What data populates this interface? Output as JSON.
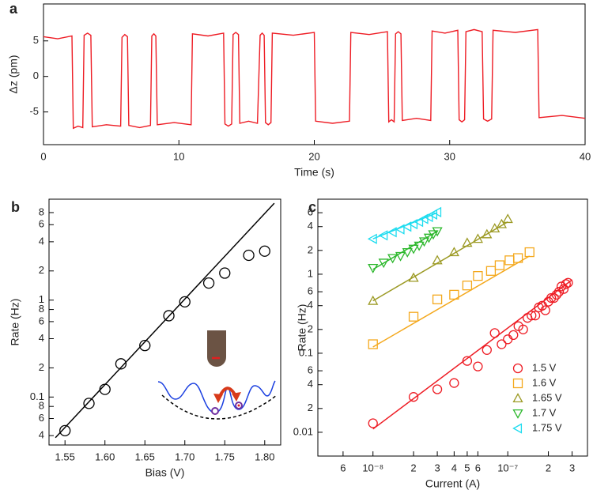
{
  "chart_data": [
    {
      "type": "line",
      "label": "a",
      "xlabel": "Time (s)",
      "ylabel": "Δz (pm)",
      "color": "#ee1c24",
      "xscale": "linear",
      "yscale": "linear",
      "xlim": [
        0,
        40
      ],
      "ylim": [
        -9.6,
        10.2
      ],
      "xticks": [
        0,
        10,
        20,
        30,
        40
      ],
      "yticks": [
        5,
        0,
        -5
      ],
      "x": [
        0,
        1.05,
        2.1,
        2.2,
        2.55,
        2.9,
        3.0,
        3.25,
        3.5,
        3.6,
        4.65,
        5.7,
        5.8,
        6.0,
        6.2,
        6.3,
        7.1,
        7.9,
        8.0,
        8.15,
        8.3,
        8.4,
        9.65,
        10.9,
        11.0,
        12.15,
        13.3,
        13.4,
        13.65,
        13.9,
        14.0,
        14.2,
        14.4,
        14.5,
        15.15,
        15.8,
        16.0,
        16.15,
        16.3,
        16.4,
        16.6,
        16.8,
        16.9,
        18.45,
        20.0,
        20.1,
        21.35,
        22.6,
        22.7,
        24.05,
        25.4,
        25.5,
        25.7,
        25.9,
        26.0,
        26.2,
        26.4,
        26.5,
        27.55,
        28.6,
        28.7,
        29.65,
        30.6,
        30.7,
        30.9,
        31.1,
        31.2,
        31.8,
        32.4,
        32.5,
        32.8,
        33.1,
        33.2,
        34.85,
        36.5,
        36.6,
        38.3,
        40
      ],
      "values": [
        5.6,
        5.3,
        5.7,
        -7.3,
        -7.0,
        -7.2,
        5.8,
        6.1,
        5.8,
        -7.1,
        -6.8,
        -7.0,
        5.5,
        5.9,
        5.6,
        -6.9,
        -7.2,
        -6.9,
        5.7,
        6.0,
        5.7,
        -6.8,
        -6.5,
        -6.8,
        6.0,
        5.7,
        6.1,
        -6.7,
        -7.0,
        -6.7,
        5.9,
        6.2,
        5.9,
        -6.6,
        -6.3,
        -6.6,
        5.8,
        6.1,
        5.8,
        -6.5,
        -6.8,
        -6.5,
        6.1,
        5.8,
        6.2,
        -6.3,
        -6.6,
        -6.3,
        6.2,
        5.9,
        6.3,
        -6.4,
        -6.1,
        -6.4,
        6.0,
        6.3,
        6.0,
        -6.2,
        -5.9,
        -6.2,
        6.4,
        6.1,
        6.5,
        -6.1,
        -6.4,
        -6.1,
        6.3,
        6.6,
        6.3,
        -6.0,
        -6.3,
        -6.0,
        6.5,
        6.2,
        6.6,
        -5.8,
        -5.5,
        -5.9
      ]
    },
    {
      "type": "scatter",
      "label": "b",
      "xlabel": "Bias (V)",
      "ylabel": "Rate (Hz)",
      "xscale": "linear",
      "yscale": "log",
      "xlim": [
        1.53,
        1.82
      ],
      "ylim": [
        0.032,
        11
      ],
      "xticks": [
        1.55,
        {
          "value": 1.6,
          "label": "1.60"
        },
        1.65,
        {
          "value": 1.7,
          "label": "1.70"
        },
        1.75,
        {
          "value": 1.8,
          "label": "1.80"
        }
      ],
      "yticks": [
        {
          "value": 0.04,
          "label": "4"
        },
        {
          "value": 0.06,
          "label": "6"
        },
        {
          "value": 0.08,
          "label": "8"
        },
        0.1,
        {
          "value": 0.2,
          "label": "2"
        },
        {
          "value": 0.4,
          "label": "4"
        },
        {
          "value": 0.6,
          "label": "6"
        },
        {
          "value": 0.8,
          "label": "8"
        },
        1,
        2,
        4,
        6,
        8
      ],
      "series": [
        {
          "color": "#000000",
          "marker": "circle",
          "x": [
            1.55,
            1.58,
            1.6,
            1.62,
            1.65,
            1.68,
            1.7,
            1.73,
            1.75,
            1.78,
            1.8
          ],
          "values": [
            0.045,
            0.086,
            0.12,
            0.22,
            0.34,
            0.69,
            0.96,
            1.5,
            1.9,
            2.9,
            3.2
          ],
          "fit": {
            "x": [
              1.538,
              1.812
            ],
            "values": [
              0.038,
              10
            ]
          }
        }
      ]
    },
    {
      "type": "scatter",
      "label": "c",
      "xlabel": "Current (A)",
      "ylabel": "Rate (Hz)",
      "legend": "lower right",
      "xscale": "log",
      "yscale": "log",
      "xlim": [
        3.9e-09,
        3.9e-07
      ],
      "ylim": [
        0.005,
        8.9
      ],
      "xticks": [
        {
          "value": 6e-09,
          "label": "6"
        },
        {
          "value": 1e-08,
          "label": "10⁻⁸"
        },
        {
          "value": 2e-08,
          "label": "2"
        },
        {
          "value": 3e-08,
          "label": "3"
        },
        {
          "value": 4e-08,
          "label": "4"
        },
        {
          "value": 5e-08,
          "label": "5"
        },
        {
          "value": 6e-08,
          "label": "6"
        },
        {
          "value": 1e-07,
          "label": "10⁻⁷"
        },
        {
          "value": 2e-07,
          "label": "2"
        },
        {
          "value": 3e-07,
          "label": "3"
        }
      ],
      "yticks": [
        0.01,
        {
          "value": 0.02,
          "label": "2"
        },
        {
          "value": 0.04,
          "label": "4"
        },
        {
          "value": 0.06,
          "label": "6"
        },
        0.1,
        {
          "value": 0.2,
          "label": "2"
        },
        {
          "value": 0.4,
          "label": "4"
        },
        {
          "value": 0.6,
          "label": "6"
        },
        1,
        2,
        4,
        6
      ],
      "series": [
        {
          "name": "1.5 V",
          "color": "#ee1c24",
          "marker": "circle",
          "x": [
            1e-08,
            2e-08,
            3e-08,
            4e-08,
            5e-08,
            6e-08,
            7e-08,
            8e-08,
            9e-08,
            1e-07,
            1.1e-07,
            1.2e-07,
            1.3e-07,
            1.4e-07,
            1.5e-07,
            1.6e-07,
            1.7e-07,
            1.8e-07,
            1.9e-07,
            2e-07,
            2.1e-07,
            2.2e-07,
            2.3e-07,
            2.4e-07,
            2.5e-07,
            2.6e-07,
            2.7e-07,
            2.8e-07
          ],
          "values": [
            0.013,
            0.028,
            0.035,
            0.042,
            0.08,
            0.068,
            0.11,
            0.18,
            0.13,
            0.15,
            0.17,
            0.22,
            0.2,
            0.28,
            0.3,
            0.3,
            0.38,
            0.4,
            0.35,
            0.45,
            0.5,
            0.5,
            0.55,
            0.6,
            0.7,
            0.65,
            0.75,
            0.78
          ],
          "fit": {
            "x": [
              1e-08,
              3e-07
            ],
            "values": [
              0.011,
              0.85
            ]
          }
        },
        {
          "name": "1.6 V",
          "color": "#f4a81c",
          "marker": "square",
          "x": [
            1e-08,
            2e-08,
            3e-08,
            4e-08,
            5e-08,
            6e-08,
            7.5e-08,
            8.7e-08,
            1.03e-07,
            1.19e-07,
            1.45e-07
          ],
          "values": [
            0.13,
            0.29,
            0.48,
            0.55,
            0.72,
            0.95,
            1.1,
            1.3,
            1.5,
            1.6,
            1.9
          ],
          "fit": {
            "x": [
              1e-08,
              1.45e-07
            ],
            "values": [
              0.12,
              1.7
            ]
          }
        },
        {
          "name": "1.65 V",
          "color": "#9c9a24",
          "marker": "triangle-up",
          "x": [
            1e-08,
            2e-08,
            3e-08,
            4e-08,
            5e-08,
            6e-08,
            7e-08,
            8e-08,
            9e-08,
            1e-07
          ],
          "values": [
            0.46,
            0.9,
            1.5,
            1.9,
            2.5,
            2.8,
            3.2,
            3.8,
            4.3,
            5.0
          ],
          "fit": {
            "x": [
              1e-08,
              1e-07
            ],
            "values": [
              0.46,
              4.6
            ]
          }
        },
        {
          "name": "1.7 V",
          "color": "#2db82d",
          "marker": "triangle-down",
          "x": [
            1e-08,
            1.2e-08,
            1.4e-08,
            1.6e-08,
            1.8e-08,
            2e-08,
            2.2e-08,
            2.4e-08,
            2.6e-08,
            2.8e-08,
            3e-08
          ],
          "values": [
            1.2,
            1.4,
            1.6,
            1.7,
            1.9,
            2.1,
            2.3,
            2.6,
            2.9,
            3.2,
            3.5
          ],
          "fit": {
            "x": [
              1e-08,
              3e-08
            ],
            "values": [
              1.15,
              3.5
            ]
          }
        },
        {
          "name": "1.75 V",
          "color": "#1edcef",
          "marker": "triangle-left",
          "x": [
            1e-08,
            1.2e-08,
            1.4e-08,
            1.6e-08,
            1.8e-08,
            2e-08,
            2.2e-08,
            2.4e-08,
            2.6e-08,
            2.8e-08,
            3e-08
          ],
          "values": [
            2.8,
            3.1,
            3.4,
            3.7,
            4.0,
            4.3,
            4.6,
            5.0,
            5.3,
            5.7,
            6.1
          ],
          "fit": {
            "x": [
              1e-08,
              3e-08
            ],
            "values": [
              2.8,
              6.0
            ]
          }
        }
      ]
    }
  ]
}
